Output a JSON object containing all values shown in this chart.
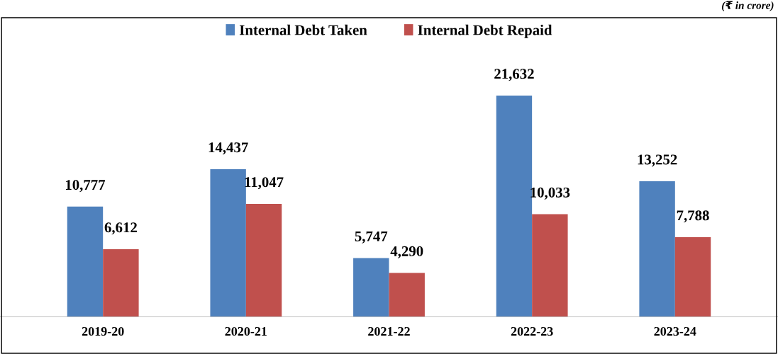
{
  "chart_data": {
    "type": "bar",
    "categories": [
      "2019-20",
      "2020-21",
      "2021-22",
      "2022-23",
      "2023-24"
    ],
    "series": [
      {
        "name": "Internal Debt Taken",
        "color": "#4f81bd",
        "values": [
          10777,
          14437,
          5747,
          21632,
          13252
        ],
        "value_labels": [
          "10,777",
          "14,437",
          "5,747",
          "21,632",
          "13,252"
        ]
      },
      {
        "name": "Internal Debt Repaid",
        "color": "#c0504d",
        "values": [
          6612,
          11047,
          4290,
          10033,
          7788
        ],
        "value_labels": [
          "6,612",
          "11,047",
          "4,290",
          "10,033",
          "7,788"
        ]
      }
    ],
    "legend": "top",
    "grid": false,
    "annotations": [
      "(₹ in crore)"
    ]
  }
}
